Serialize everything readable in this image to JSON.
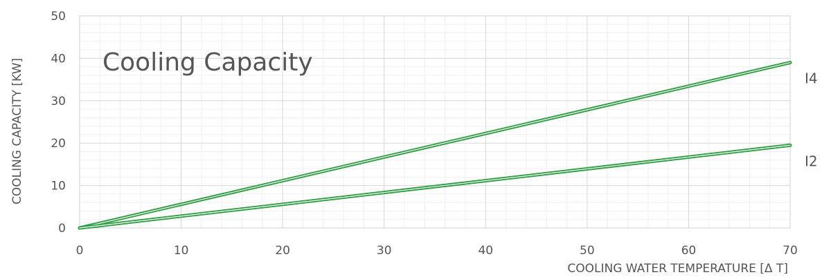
{
  "chart_data": {
    "type": "line",
    "title": "Cooling Capacity",
    "xlabel": "COOLING WATER TEMPERATURE [Δ T]",
    "ylabel": "COOLING CAPACITY [KW]",
    "xlim": [
      0,
      70
    ],
    "ylim": [
      0,
      50
    ],
    "x_ticks": [
      "0",
      "10",
      "20",
      "30",
      "40",
      "50",
      "60",
      "70"
    ],
    "y_ticks": [
      "0",
      "10",
      "20",
      "30",
      "40",
      "50"
    ],
    "grid": true,
    "series": [
      {
        "name": "I4",
        "x": [
          0,
          70
        ],
        "y": [
          0,
          39
        ],
        "color": "#2f9e44"
      },
      {
        "name": "I2",
        "x": [
          0,
          70
        ],
        "y": [
          0,
          19.5
        ],
        "color": "#2f9e44"
      }
    ]
  }
}
